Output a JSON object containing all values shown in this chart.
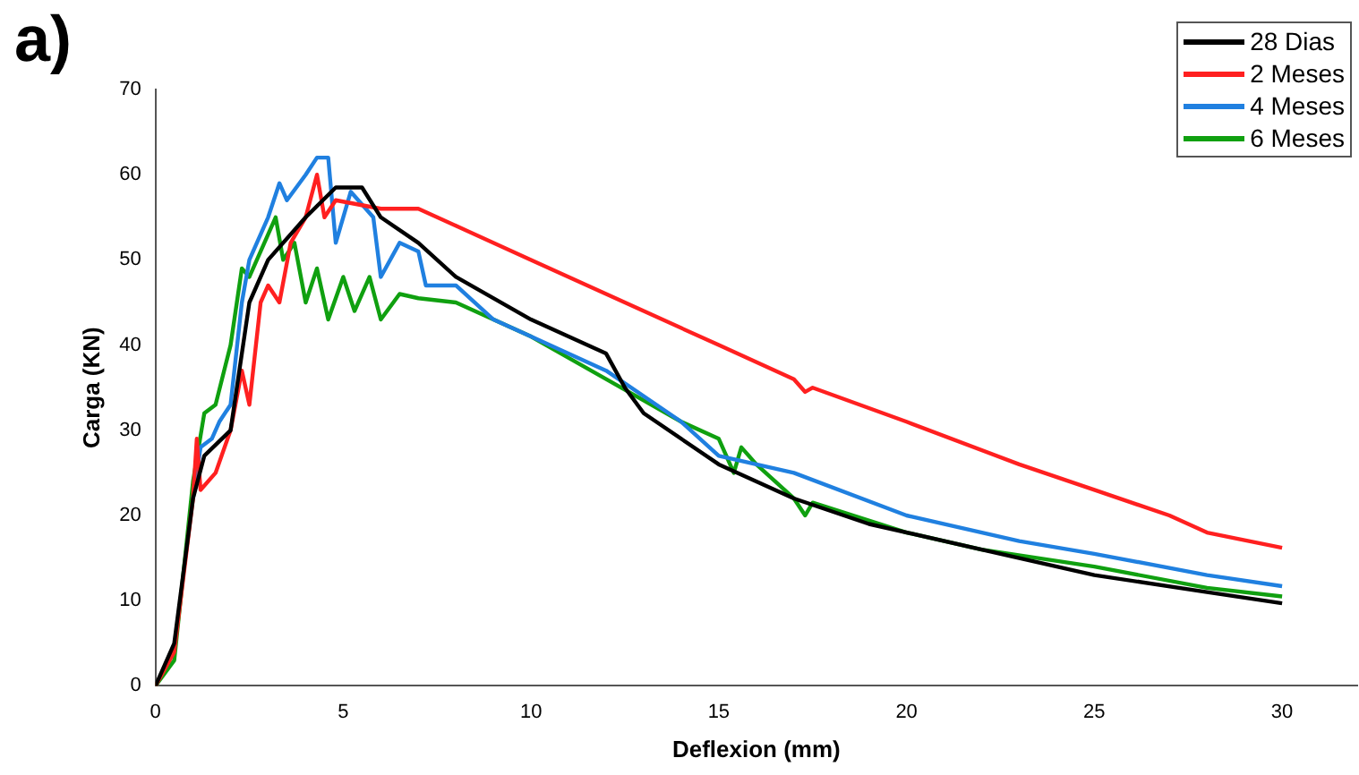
{
  "chart_data": {
    "type": "line",
    "xlabel": "Deflexion (mm)",
    "ylabel": "Carga (KN)",
    "annotations": [
      "a)"
    ],
    "xlim": [
      0,
      32
    ],
    "xticks": [
      0,
      5,
      10,
      15,
      20,
      25,
      30
    ],
    "ylim": [
      0,
      70
    ],
    "yticks": [
      0,
      10,
      20,
      30,
      40,
      50,
      60,
      70
    ],
    "grid": false,
    "legend": "top right",
    "marker": "none",
    "line_style": "solid",
    "series": [
      {
        "name": "28 Dias",
        "color": "#000000",
        "x": [
          0,
          0.5,
          1,
          1.3,
          2,
          2.5,
          3,
          4,
          4.8,
          5.5,
          6,
          7,
          8,
          10,
          12,
          12.5,
          13,
          15,
          17,
          19,
          22,
          25,
          28,
          30
        ],
        "values": [
          0,
          5,
          22,
          27,
          30,
          45,
          50,
          55,
          58.5,
          58.5,
          55,
          52,
          48,
          43,
          39,
          35,
          32,
          26,
          22,
          19,
          16,
          13,
          11,
          9.7
        ]
      },
      {
        "name": "2 Meses",
        "color": "#ff2020",
        "x": [
          0,
          0.5,
          1,
          1.1,
          1.2,
          1.6,
          2,
          2.3,
          2.5,
          2.8,
          3,
          3.3,
          3.6,
          4,
          4.3,
          4.5,
          4.8,
          6,
          7,
          8,
          10,
          12,
          13,
          15,
          17,
          17.3,
          17.5,
          20,
          23,
          25,
          27,
          28,
          30
        ],
        "values": [
          0,
          4,
          22,
          29,
          23,
          25,
          30,
          37,
          33,
          45,
          47,
          45,
          52,
          55,
          60,
          55,
          57,
          56,
          56,
          54,
          50,
          46,
          44,
          40,
          36,
          34.5,
          35,
          31,
          26,
          23,
          20,
          18,
          16.2
        ]
      },
      {
        "name": "4 Meses",
        "color": "#2080e0",
        "x": [
          1,
          1.2,
          1.5,
          1.7,
          2,
          2.3,
          2.5,
          3,
          3.3,
          3.5,
          4,
          4.3,
          4.6,
          4.8,
          5.2,
          5.8,
          6,
          6.5,
          7,
          7.2,
          8,
          9,
          10,
          12,
          14,
          15,
          17,
          20,
          23,
          25,
          28,
          30
        ],
        "values": [
          22,
          28,
          29,
          31,
          33,
          45,
          50,
          55,
          59,
          57,
          60,
          62,
          62,
          52,
          58,
          55,
          48,
          52,
          51,
          47,
          47,
          43,
          41,
          37,
          31,
          27,
          25,
          20,
          17,
          15.5,
          13,
          11.7
        ]
      },
      {
        "name": "6 Meses",
        "color": "#10a010",
        "x": [
          0,
          0.5,
          1,
          1.3,
          1.6,
          2,
          2.3,
          2.5,
          3,
          3.2,
          3.4,
          3.7,
          4,
          4.3,
          4.6,
          5,
          5.3,
          5.7,
          6,
          6.5,
          7,
          8,
          9,
          10,
          12,
          14,
          15,
          15.4,
          15.6,
          16,
          17,
          17.3,
          17.5,
          20,
          22,
          25,
          28,
          30
        ],
        "values": [
          0,
          3,
          24,
          32,
          33,
          40,
          49,
          48,
          53,
          55,
          50,
          52,
          45,
          49,
          43,
          48,
          44,
          48,
          43,
          46,
          45.5,
          45,
          43,
          41,
          36,
          31,
          29,
          25,
          28,
          26,
          22,
          20,
          21.5,
          18,
          16,
          14,
          11.5,
          10.5
        ]
      }
    ]
  }
}
